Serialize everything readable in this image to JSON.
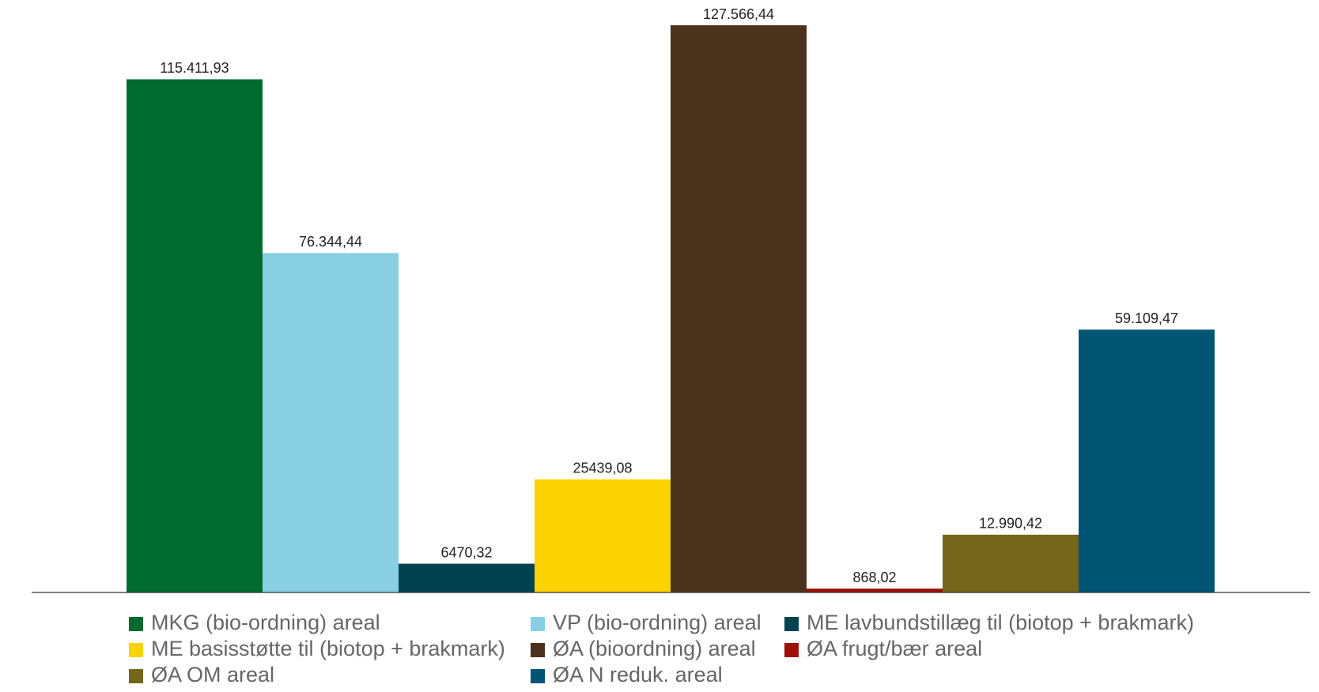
{
  "chart_data": {
    "type": "bar",
    "series": [
      {
        "name": "MKG (bio-ordning) areal",
        "color": "#006b2f",
        "values": [
          115411.93
        ],
        "value_labels": [
          "115.411,93"
        ]
      },
      {
        "name": "VP (bio-ordning) areal",
        "color": "#89cfe4",
        "values": [
          76344.44
        ],
        "value_labels": [
          "76.344,44"
        ]
      },
      {
        "name": "ME lavbundstillæg til (biotop + brakmark)",
        "color": "#00434f",
        "values": [
          6470.32
        ],
        "value_labels": [
          "6470,32"
        ]
      },
      {
        "name": "ME basisstøtte til (biotop + brakmark)",
        "color": "#fcd300",
        "values": [
          25439.08
        ],
        "value_labels": [
          "25439,08"
        ]
      },
      {
        "name": "ØA (bioordning) areal",
        "color": "#4a321d",
        "values": [
          127566.44
        ],
        "value_labels": [
          "127.566,44"
        ]
      },
      {
        "name": "ØA frugt/bær areal",
        "color": "#9c1006",
        "values": [
          868.02
        ],
        "value_labels": [
          "868,02"
        ]
      },
      {
        "name": "ØA OM areal",
        "color": "#75661b",
        "values": [
          12990.42
        ],
        "value_labels": [
          "12.990,42"
        ]
      },
      {
        "name": "ØA N reduk. areal",
        "color": "#005574",
        "values": [
          59109.47
        ],
        "value_labels": [
          "59.109,47"
        ]
      }
    ]
  }
}
